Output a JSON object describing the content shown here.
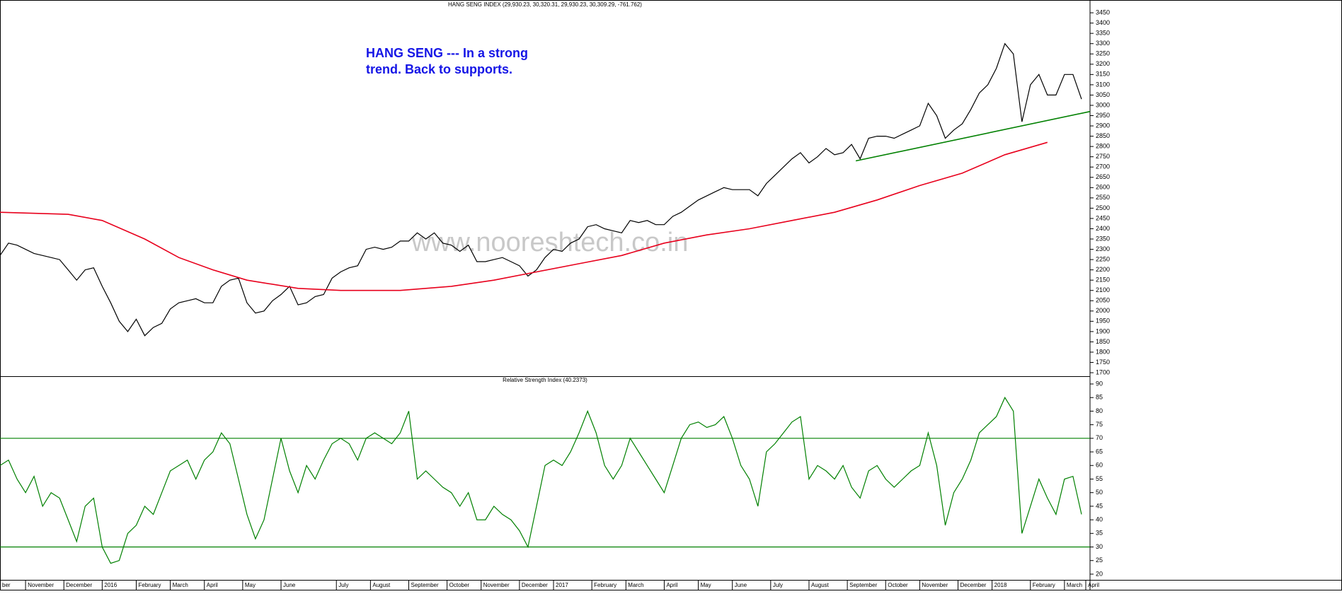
{
  "chart_data": [
    {
      "type": "line",
      "title": "HANG SENG INDEX (29,930.23, 30,320.31, 29,930.23, 30,309.29, -761.762)",
      "annotation": [
        "HANG SENG --- In a strong",
        "trend. Back to supports."
      ],
      "watermark": "www.nooreshtech.co.in",
      "xlim": [
        0,
        128
      ],
      "ylim": [
        1683,
        3495
      ],
      "yticks": [
        1700,
        1750,
        1800,
        1850,
        1900,
        1950,
        2000,
        2050,
        2100,
        2150,
        2200,
        2250,
        2300,
        2350,
        2400,
        2450,
        2500,
        2550,
        2600,
        2650,
        2700,
        2750,
        2800,
        2850,
        2900,
        2950,
        3000,
        3050,
        3100,
        3150,
        3200,
        3250,
        3300,
        3350,
        3400,
        3450
      ],
      "series": [
        {
          "color": "#000000",
          "values": [
            2270,
            2330,
            2320,
            2300,
            2280,
            2270,
            2260,
            2250,
            2200,
            2150,
            2200,
            2210,
            2120,
            2040,
            1950,
            1900,
            1960,
            1880,
            1920,
            1940,
            2010,
            2040,
            2050,
            2060,
            2040,
            2040,
            2120,
            2150,
            2160,
            2040,
            1990,
            2000,
            2050,
            2080,
            2120,
            2030,
            2040,
            2070,
            2080,
            2160,
            2190,
            2210,
            2220,
            2300,
            2310,
            2300,
            2310,
            2340,
            2340,
            2380,
            2350,
            2380,
            2330,
            2320,
            2290,
            2320,
            2240,
            2240,
            2250,
            2260,
            2240,
            2220,
            2170,
            2200,
            2260,
            2300,
            2290,
            2330,
            2350,
            2410,
            2420,
            2400,
            2390,
            2380,
            2440,
            2430,
            2440,
            2420,
            2420,
            2460,
            2480,
            2510,
            2540,
            2560,
            2580,
            2600,
            2590,
            2590,
            2590,
            2560,
            2620,
            2660,
            2700,
            2740,
            2770,
            2720,
            2750,
            2790,
            2760,
            2770,
            2810,
            2740,
            2840,
            2850,
            2850,
            2840,
            2860,
            2880,
            2900,
            3010,
            2950,
            2840,
            2880,
            2910,
            2980,
            3060,
            3100,
            3180,
            3300,
            3250,
            2920,
            3100,
            3150,
            3050,
            3050,
            3150,
            3150,
            3030
          ]
        },
        {
          "color": "#e8001c",
          "x": [
            0,
            8,
            12,
            17,
            21,
            25,
            29,
            35,
            40,
            47,
            53,
            58,
            63,
            68,
            73,
            78,
            83,
            88,
            93,
            98,
            103,
            108,
            113,
            118,
            123
          ],
          "values": [
            2480,
            2470,
            2440,
            2350,
            2260,
            2200,
            2150,
            2110,
            2100,
            2100,
            2120,
            2150,
            2190,
            2230,
            2270,
            2330,
            2370,
            2400,
            2440,
            2480,
            2540,
            2610,
            2670,
            2760,
            2820
          ]
        },
        {
          "color": "#008000",
          "x": [
            100.5,
            128
          ],
          "values": [
            2730,
            2970
          ]
        }
      ]
    },
    {
      "type": "line",
      "title": "Relative Strength Index (40.2373)",
      "xlim": [
        0,
        128
      ],
      "ylim": [
        17.9,
        92.6
      ],
      "yticks": [
        20,
        25,
        30,
        35,
        40,
        45,
        50,
        55,
        60,
        65,
        70,
        75,
        80,
        85,
        90
      ],
      "hlines": [
        70,
        30
      ],
      "hline_color": "#008000",
      "xticks": [
        {
          "value": 0,
          "label": "ber"
        },
        {
          "value": 3,
          "label": "November"
        },
        {
          "value": 7.5,
          "label": "December"
        },
        {
          "value": 12,
          "label": "2016"
        },
        {
          "value": 16,
          "label": "February"
        },
        {
          "value": 20,
          "label": "March"
        },
        {
          "value": 24,
          "label": "April"
        },
        {
          "value": 28.5,
          "label": "May"
        },
        {
          "value": 33,
          "label": "June"
        },
        {
          "value": 39.5,
          "label": "July"
        },
        {
          "value": 43.5,
          "label": "August"
        },
        {
          "value": 48,
          "label": "September"
        },
        {
          "value": 52.5,
          "label": "October"
        },
        {
          "value": 56.5,
          "label": "November"
        },
        {
          "value": 61,
          "label": "December"
        },
        {
          "value": 65,
          "label": "2017"
        },
        {
          "value": 69.5,
          "label": "February"
        },
        {
          "value": 73.5,
          "label": "March"
        },
        {
          "value": 78,
          "label": "April"
        },
        {
          "value": 82,
          "label": "May"
        },
        {
          "value": 86,
          "label": "June"
        },
        {
          "value": 90.5,
          "label": "July"
        },
        {
          "value": 95,
          "label": "August"
        },
        {
          "value": 99.5,
          "label": "September"
        },
        {
          "value": 104,
          "label": "October"
        },
        {
          "value": 108,
          "label": "November"
        },
        {
          "value": 112.5,
          "label": "December"
        },
        {
          "value": 116.5,
          "label": "2018"
        },
        {
          "value": 121,
          "label": "February"
        },
        {
          "value": 125,
          "label": "March"
        },
        {
          "value": 127.5,
          "label": "April"
        }
      ],
      "series": [
        {
          "color": "#008000",
          "values": [
            60,
            62,
            55,
            50,
            56,
            45,
            50,
            48,
            40,
            32,
            45,
            48,
            30,
            24,
            25,
            35,
            38,
            45,
            42,
            50,
            58,
            60,
            62,
            55,
            62,
            65,
            72,
            68,
            55,
            42,
            33,
            40,
            55,
            70,
            58,
            50,
            60,
            55,
            62,
            68,
            70,
            68,
            62,
            70,
            72,
            70,
            68,
            72,
            80,
            55,
            58,
            55,
            52,
            50,
            45,
            50,
            40,
            40,
            45,
            42,
            40,
            36,
            30,
            45,
            60,
            62,
            60,
            65,
            72,
            80,
            72,
            60,
            55,
            60,
            70,
            65,
            60,
            55,
            50,
            60,
            70,
            75,
            76,
            74,
            75,
            78,
            70,
            60,
            55,
            45,
            65,
            68,
            72,
            76,
            78,
            55,
            60,
            58,
            55,
            60,
            52,
            48,
            58,
            60,
            55,
            52,
            55,
            58,
            60,
            72,
            60,
            38,
            50,
            55,
            62,
            72,
            75,
            78,
            85,
            80,
            35,
            45,
            55,
            48,
            42,
            55,
            56,
            42
          ]
        }
      ]
    }
  ]
}
